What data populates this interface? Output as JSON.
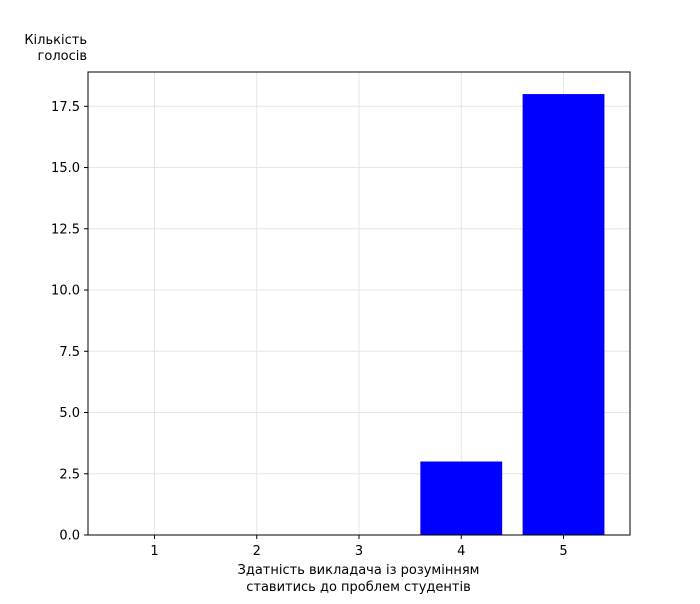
{
  "chart_data": {
    "type": "bar",
    "categories": [
      "1",
      "2",
      "3",
      "4",
      "5"
    ],
    "values": [
      0,
      0,
      0,
      3,
      18
    ],
    "xlabel_lines": [
      "Здатність викладача із розумінням",
      "ставитись до проблем студентів"
    ],
    "ylabel_lines": [
      "Кількість",
      "голосів"
    ],
    "ylim": [
      0,
      18.9
    ],
    "yticks": [
      "0.0",
      "2.5",
      "5.0",
      "7.5",
      "10.0",
      "12.5",
      "15.0",
      "17.5"
    ],
    "ytick_values": [
      0,
      2.5,
      5,
      7.5,
      10,
      12.5,
      15,
      17.5
    ],
    "grid": true,
    "bar_color": "#0000ff",
    "grid_color": "#e6e6e6",
    "axis_color": "#000000"
  }
}
